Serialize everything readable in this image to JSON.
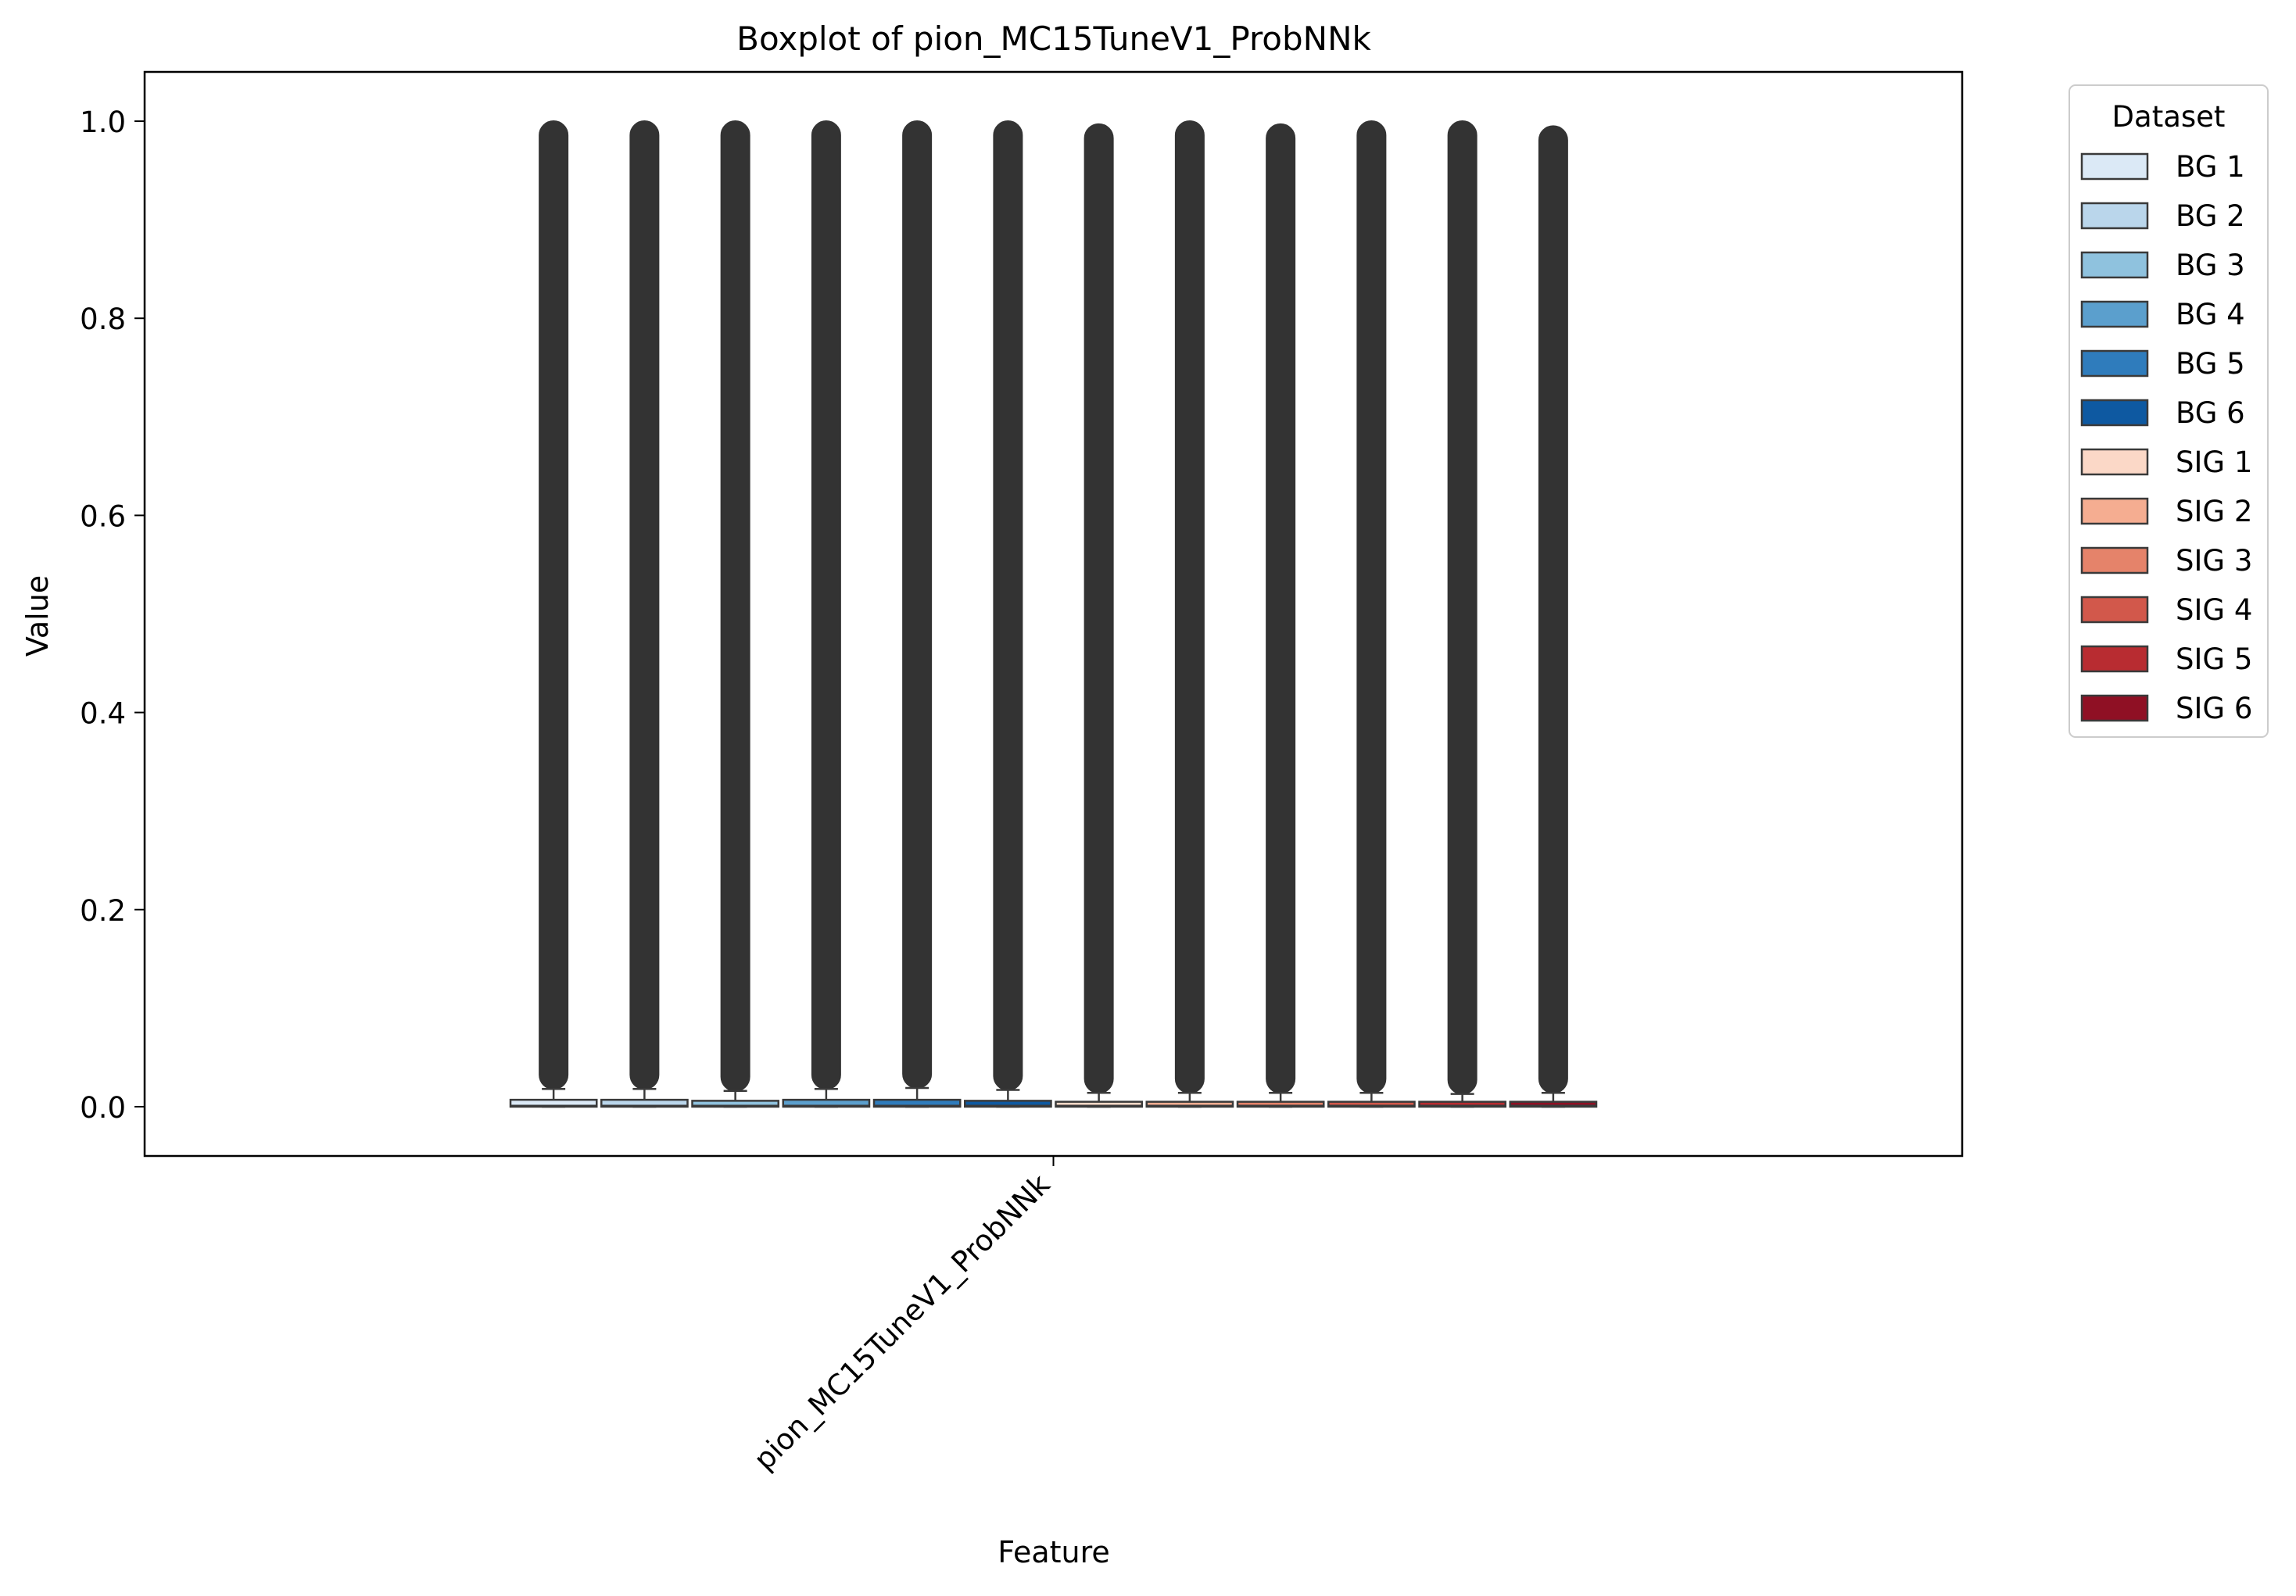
{
  "chart_data": {
    "type": "boxplot",
    "title": "Boxplot of pion_MC15TuneV1_ProbNNk",
    "xlabel": "Feature",
    "ylabel": "Value",
    "categories": [
      "pion_MC15TuneV1_ProbNNk"
    ],
    "ylim": [
      -0.05,
      1.05
    ],
    "yticks": [
      0.0,
      0.2,
      0.4,
      0.6,
      0.8,
      1.0
    ],
    "ytick_labels": [
      "0.0",
      "0.2",
      "0.4",
      "0.6",
      "0.8",
      "1.0"
    ],
    "grid": false,
    "legend": {
      "title": "Dataset",
      "position": "outside-right-top"
    },
    "series": [
      {
        "name": "BG 1",
        "color": "#dbe9f6",
        "q1": 0.0,
        "median": 0.001,
        "q3": 0.007,
        "whisker_low": 0.0,
        "whisker_high": 0.018,
        "outlier_min": 0.018,
        "outlier_max": 1.0
      },
      {
        "name": "BG 2",
        "color": "#bad6eb",
        "q1": 0.0,
        "median": 0.001,
        "q3": 0.007,
        "whisker_low": 0.0,
        "whisker_high": 0.018,
        "outlier_min": 0.018,
        "outlier_max": 1.0
      },
      {
        "name": "BG 3",
        "color": "#8fc2de",
        "q1": 0.0,
        "median": 0.001,
        "q3": 0.006,
        "whisker_low": 0.0,
        "whisker_high": 0.016,
        "outlier_min": 0.016,
        "outlier_max": 1.0
      },
      {
        "name": "BG 4",
        "color": "#5b9fcd",
        "q1": 0.0,
        "median": 0.001,
        "q3": 0.007,
        "whisker_low": 0.0,
        "whisker_high": 0.018,
        "outlier_min": 0.018,
        "outlier_max": 1.0
      },
      {
        "name": "BG 5",
        "color": "#2f7cbc",
        "q1": 0.0,
        "median": 0.001,
        "q3": 0.007,
        "whisker_low": 0.0,
        "whisker_high": 0.019,
        "outlier_min": 0.019,
        "outlier_max": 1.0
      },
      {
        "name": "BG 6",
        "color": "#0e59a1",
        "q1": 0.0,
        "median": 0.001,
        "q3": 0.006,
        "whisker_low": 0.0,
        "whisker_high": 0.017,
        "outlier_min": 0.017,
        "outlier_max": 1.0
      },
      {
        "name": "SIG 1",
        "color": "#fbd8c7",
        "q1": 0.0,
        "median": 0.001,
        "q3": 0.005,
        "whisker_low": 0.0,
        "whisker_high": 0.014,
        "outlier_min": 0.014,
        "outlier_max": 0.997
      },
      {
        "name": "SIG 2",
        "color": "#f5ad91",
        "q1": 0.0,
        "median": 0.001,
        "q3": 0.005,
        "whisker_low": 0.0,
        "whisker_high": 0.014,
        "outlier_min": 0.014,
        "outlier_max": 1.0
      },
      {
        "name": "SIG 3",
        "color": "#e5836a",
        "q1": 0.0,
        "median": 0.001,
        "q3": 0.005,
        "whisker_low": 0.0,
        "whisker_high": 0.014,
        "outlier_min": 0.014,
        "outlier_max": 0.997
      },
      {
        "name": "SIG 4",
        "color": "#d2584b",
        "q1": 0.0,
        "median": 0.001,
        "q3": 0.005,
        "whisker_low": 0.0,
        "whisker_high": 0.014,
        "outlier_min": 0.014,
        "outlier_max": 1.0
      },
      {
        "name": "SIG 5",
        "color": "#b82c31",
        "q1": 0.0,
        "median": 0.001,
        "q3": 0.005,
        "whisker_low": 0.0,
        "whisker_high": 0.013,
        "outlier_min": 0.013,
        "outlier_max": 1.0
      },
      {
        "name": "SIG 6",
        "color": "#8f1024",
        "q1": 0.0,
        "median": 0.001,
        "q3": 0.005,
        "whisker_low": 0.0,
        "whisker_high": 0.014,
        "outlier_min": 0.014,
        "outlier_max": 0.995
      }
    ]
  }
}
